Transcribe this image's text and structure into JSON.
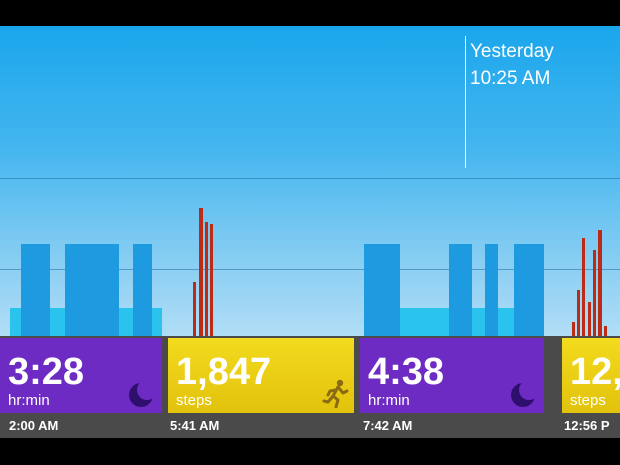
{
  "marker": {
    "day": "Yesterday",
    "time": "10:25 AM"
  },
  "colors": {
    "sky_top": "#1aa6ec",
    "sky_bottom": "#e7f4fb",
    "sleep_deep": "#1e9ae0",
    "sleep_light": "#29c3ee",
    "steps_high": "#bc2b16",
    "steps_low": "#ed7b2f",
    "sleep_tile": "#6d2bc3",
    "steps_tile": "#e8c912"
  },
  "icons": {
    "sleep": "moon-icon",
    "steps": "runner-icon"
  },
  "tiles": [
    {
      "type": "sleep",
      "value": "3:28",
      "unit": "hr:min",
      "time": "2:00 AM"
    },
    {
      "type": "steps",
      "value": "1,847",
      "unit": "steps",
      "time": "5:41 AM"
    },
    {
      "type": "sleep",
      "value": "4:38",
      "unit": "hr:min",
      "time": "7:42 AM"
    },
    {
      "type": "steps",
      "value": "12,",
      "unit": "steps",
      "time": "12:56 P"
    }
  ]
}
